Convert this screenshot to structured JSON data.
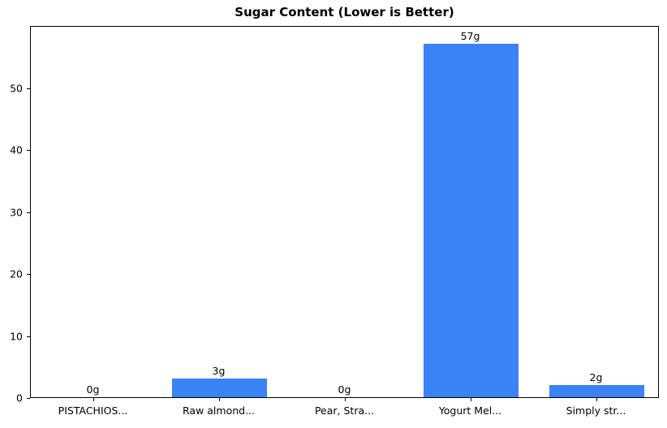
{
  "chart_data": {
    "type": "bar",
    "title": "Sugar Content (Lower is Better)",
    "categories": [
      "PISTACHIOS...",
      "Raw almond...",
      "Pear, Stra...",
      "Yogurt Mel...",
      "Simply str..."
    ],
    "values": [
      0,
      3,
      0,
      57,
      2
    ],
    "bar_labels": [
      "0g",
      "3g",
      "0g",
      "57g",
      "2g"
    ],
    "xlabel": "",
    "ylabel": "",
    "ylim": [
      0,
      60
    ],
    "yticks": [
      0,
      10,
      20,
      30,
      40,
      50
    ],
    "bar_color": "#3b82f6",
    "axis_color": "#000000",
    "text_color": "#000000",
    "grid": false,
    "legend_position": "none",
    "bar_width_ratio": 0.755
  }
}
